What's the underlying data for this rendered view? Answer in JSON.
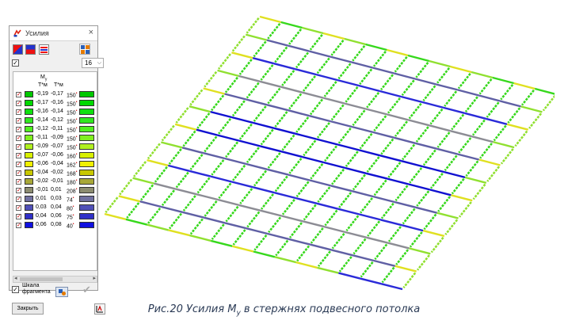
{
  "window": {
    "title": "Усилия",
    "close_glyph": "×"
  },
  "toolbar": {
    "icons": [
      "color-scale-icon",
      "two-color-icon",
      "list-icon",
      "layout-icon"
    ]
  },
  "header": {
    "show_all_checked": true,
    "show_all_mark": "✓",
    "count_value": "16",
    "count_chevron": "⌵",
    "col_force": "M",
    "col_force_sub": "y",
    "col_units_1": "T*м",
    "col_units_2": "T*м"
  },
  "scale": {
    "rows": [
      {
        "from": "-0,19",
        "to": "-0,17",
        "count": "150",
        "color": "#00c800"
      },
      {
        "from": "-0,17",
        "to": "-0,16",
        "count": "150",
        "color": "#00d800"
      },
      {
        "from": "-0,16",
        "to": "-0,14",
        "count": "150",
        "color": "#10e010"
      },
      {
        "from": "-0,14",
        "to": "-0,12",
        "count": "150",
        "color": "#30e820"
      },
      {
        "from": "-0,12",
        "to": "-0,11",
        "count": "150",
        "color": "#50f020"
      },
      {
        "from": "-0,11",
        "to": "-0,09",
        "count": "150",
        "color": "#80f020"
      },
      {
        "from": "-0,09",
        "to": "-0,07",
        "count": "150",
        "color": "#b0f020"
      },
      {
        "from": "-0,07",
        "to": "-0,06",
        "count": "160",
        "color": "#d8f000"
      },
      {
        "from": "-0,06",
        "to": "-0,04",
        "count": "162",
        "color": "#f0f000"
      },
      {
        "from": "-0,04",
        "to": "-0,02",
        "count": "168",
        "color": "#c8c800"
      },
      {
        "from": "-0,02",
        "to": "-0,01",
        "count": "180",
        "color": "#a8a838"
      },
      {
        "from": "-0,01",
        "to": "0,01",
        "count": "208",
        "color": "#8c8c70"
      },
      {
        "from": "0,01",
        "to": "0,03",
        "count": "74",
        "color": "#7070a0"
      },
      {
        "from": "0,03",
        "to": "0,04",
        "count": "80",
        "color": "#5050b8"
      },
      {
        "from": "0,04",
        "to": "0,06",
        "count": "75",
        "color": "#3030c8"
      },
      {
        "from": "0,06",
        "to": "0,08",
        "count": "40",
        "color": "#1010e0"
      }
    ],
    "row_check_mark": "✓",
    "count_marker": "•"
  },
  "scrollbar": {
    "left_arrow": "◂",
    "right_arrow": "▸"
  },
  "footer": {
    "fragment_checked": true,
    "fragment_mark": "✓",
    "fragment_label_1": "Шкала",
    "fragment_label_2": "фрагмента",
    "apply_glyph": "✔",
    "close_label": "Закрыть"
  },
  "caption": {
    "prefix": "Рис.20 Усилия M",
    "sub": "y",
    "suffix": " в стержнях подвесного потолка"
  },
  "plot_colors": {
    "green": "#36d81c",
    "lightgreen": "#90e030",
    "yellow": "#e0e020",
    "olive": "#a8a838",
    "gray": "#8c8c94",
    "slate": "#5f5fa4",
    "blue": "#2a2ad8",
    "darkblue": "#1010d0"
  }
}
